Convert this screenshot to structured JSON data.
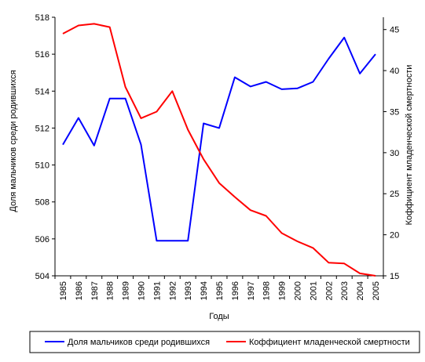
{
  "chart_data": {
    "type": "line",
    "title": "",
    "xlabel": "Годы",
    "ylabel_left": "Доля мальчиков среди родившихся",
    "ylabel_right": "Коффициент младенческой смертности",
    "x": [
      "1985",
      "1986",
      "1987",
      "1988",
      "1989",
      "1990",
      "1991",
      "1992",
      "1993",
      "1994",
      "1995",
      "1996",
      "1997",
      "1998",
      "1999",
      "2000",
      "2001",
      "2002",
      "2003",
      "2004",
      "2005"
    ],
    "ylim_left": [
      504,
      518
    ],
    "yticks_left": [
      504,
      506,
      508,
      510,
      512,
      514,
      516,
      518
    ],
    "ylim_right": [
      15,
      46.5
    ],
    "yticks_right": [
      15,
      20,
      25,
      30,
      35,
      40,
      45
    ],
    "grid": false,
    "legend_position": "bottom",
    "series": [
      {
        "name": "Доля мальчиков среди родившихся",
        "axis": "left",
        "color": "#0000ff",
        "values": [
          511.1,
          512.55,
          511.05,
          513.6,
          513.6,
          511.1,
          505.9,
          505.9,
          505.9,
          512.25,
          512.0,
          514.75,
          514.25,
          514.5,
          514.1,
          514.15,
          514.5,
          515.75,
          516.9,
          514.95,
          516.0
        ]
      },
      {
        "name": "Коффициент младенческой смертности",
        "axis": "right",
        "color": "#ff0000",
        "values": [
          44.5,
          45.5,
          45.7,
          45.3,
          38.0,
          34.2,
          35.0,
          37.5,
          32.8,
          29.2,
          26.3,
          24.6,
          23.0,
          22.3,
          20.2,
          19.2,
          18.4,
          16.6,
          16.5,
          15.3,
          15.0
        ]
      }
    ]
  }
}
